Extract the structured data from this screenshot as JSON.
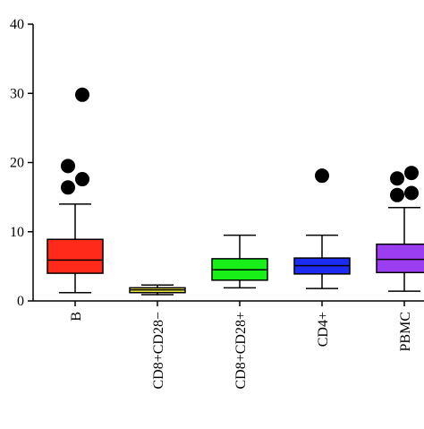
{
  "chart_data": {
    "type": "box",
    "title": "",
    "xlabel": "",
    "ylabel": "",
    "ylim": [
      0,
      40
    ],
    "yticks": [
      0,
      10,
      20,
      30,
      40
    ],
    "grid": false,
    "categories": [
      "B",
      "CD8+CD28−",
      "CD8+CD28+",
      "CD4+",
      "PBMC"
    ],
    "boxes": [
      {
        "category": "B",
        "color": "#ff2a1a",
        "whisker_low": 1.2,
        "q1": 4.0,
        "median": 5.9,
        "q3": 8.9,
        "whisker_high": 14.0,
        "outliers": [
          16.4,
          17.6,
          19.5,
          29.8
        ]
      },
      {
        "category": "CD8+CD28−",
        "color": "#e8e43a",
        "whisker_low": 0.9,
        "q1": 1.2,
        "median": 1.6,
        "q3": 1.9,
        "whisker_high": 2.3,
        "outliers": []
      },
      {
        "category": "CD8+CD28+",
        "color": "#18ef18",
        "whisker_low": 1.9,
        "q1": 3.0,
        "median": 4.5,
        "q3": 6.1,
        "whisker_high": 9.5,
        "outliers": []
      },
      {
        "category": "CD4+",
        "color": "#1c2cf0",
        "whisker_low": 1.8,
        "q1": 3.9,
        "median": 5.1,
        "q3": 6.2,
        "whisker_high": 9.5,
        "outliers": [
          18.1
        ]
      },
      {
        "category": "PBMC",
        "color": "#9b3df0",
        "whisker_low": 1.4,
        "q1": 4.1,
        "median": 6.0,
        "q3": 8.2,
        "whisker_high": 13.5,
        "outliers": [
          15.3,
          15.6,
          17.7,
          18.5
        ]
      }
    ]
  }
}
